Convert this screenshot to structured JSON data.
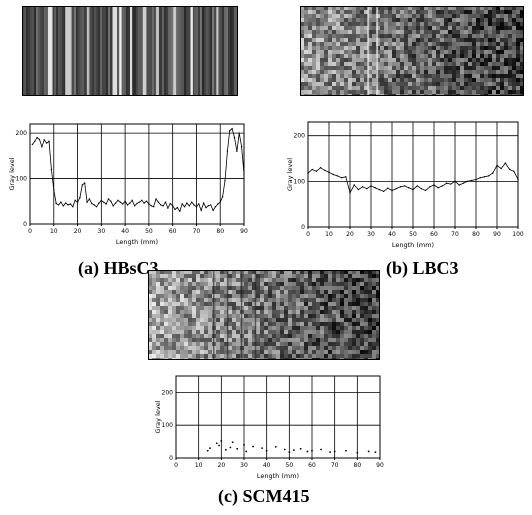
{
  "panels": [
    {
      "id": "a",
      "caption": "(a) HBsC3",
      "image_style": "streaky",
      "chart_data": {
        "type": "line",
        "xlabel": "Length (mm)",
        "ylabel": "Gray level",
        "xlim": [
          0,
          90
        ],
        "ylim": [
          0,
          220
        ],
        "xticks": [
          0,
          10,
          20,
          30,
          40,
          50,
          60,
          70,
          80,
          90
        ],
        "yticks": [
          0,
          100,
          200
        ],
        "grid": true,
        "series": [
          {
            "x": [
              1,
              2,
              3,
              4,
              5,
              6,
              7,
              8,
              9,
              10,
              11,
              12,
              13,
              14,
              15,
              16,
              17,
              18,
              19,
              20,
              21,
              22,
              23,
              24,
              25,
              26,
              27,
              28,
              29,
              30,
              31,
              32,
              33,
              34,
              35,
              36,
              37,
              38,
              39,
              40,
              41,
              42,
              43,
              44,
              45,
              46,
              47,
              48,
              49,
              50,
              51,
              52,
              53,
              54,
              55,
              56,
              57,
              58,
              59,
              60,
              61,
              62,
              63,
              64,
              65,
              66,
              67,
              68,
              69,
              70,
              71,
              72,
              73,
              74,
              75,
              76,
              77,
              78,
              79,
              80,
              81,
              82,
              83,
              84,
              85,
              86,
              87,
              88,
              89,
              90
            ],
            "y": [
              175,
              182,
              190,
              186,
              170,
              185,
              178,
              182,
              120,
              75,
              45,
              42,
              48,
              40,
              46,
              42,
              44,
              38,
              52,
              48,
              58,
              86,
              90,
              48,
              55,
              45,
              42,
              38,
              46,
              52,
              48,
              44,
              55,
              50,
              40,
              46,
              52,
              48,
              44,
              50,
              42,
              46,
              52,
              40,
              45,
              48,
              52,
              46,
              50,
              44,
              40,
              38,
              55,
              48,
              42,
              40,
              48,
              35,
              45,
              40,
              32,
              36,
              28,
              44,
              38,
              46,
              40,
              48,
              42,
              38,
              44,
              30,
              46,
              36,
              40,
              42,
              30,
              38,
              44,
              48,
              60,
              95,
              160,
              205,
              210,
              190,
              160,
              200,
              170,
              110
            ]
          }
        ]
      }
    },
    {
      "id": "b",
      "caption": "(b) LBC3",
      "image_style": "noisy-dark-right",
      "chart_data": {
        "type": "line",
        "xlabel": "Length (mm)",
        "ylabel": "Gray level",
        "xlim": [
          0,
          100
        ],
        "ylim": [
          0,
          230
        ],
        "xticks": [
          0,
          10,
          20,
          30,
          40,
          50,
          60,
          70,
          80,
          90,
          100
        ],
        "yticks": [
          0,
          100,
          200
        ],
        "grid": true,
        "series": [
          {
            "x": [
              0,
              2,
              4,
              6,
              8,
              10,
              12,
              14,
              16,
              18,
              20,
              22,
              24,
              26,
              28,
              30,
              32,
              34,
              36,
              38,
              40,
              42,
              44,
              46,
              48,
              50,
              52,
              54,
              56,
              58,
              60,
              62,
              64,
              66,
              68,
              70,
              72,
              74,
              76,
              78,
              80,
              82,
              84,
              86,
              88,
              90,
              92,
              94,
              96,
              98,
              100
            ],
            "y": [
              118,
              126,
              122,
              130,
              124,
              120,
              115,
              112,
              108,
              110,
              75,
              92,
              82,
              88,
              84,
              90,
              86,
              82,
              78,
              85,
              80,
              84,
              88,
              90,
              86,
              82,
              90,
              84,
              80,
              88,
              92,
              86,
              90,
              96,
              94,
              100,
              92,
              96,
              100,
              102,
              104,
              108,
              110,
              112,
              118,
              135,
              128,
              140,
              126,
              122,
              105
            ]
          }
        ]
      }
    },
    {
      "id": "c",
      "caption": "(c) SCM415",
      "image_style": "noisy-light-left",
      "chart_data": {
        "type": "scatter",
        "xlabel": "Length (mm)",
        "ylabel": "Gray level",
        "xlim": [
          0,
          90
        ],
        "ylim": [
          0,
          250
        ],
        "xticks": [
          0,
          10,
          20,
          30,
          40,
          50,
          60,
          70,
          80,
          90
        ],
        "yticks": [
          0,
          100,
          200
        ],
        "grid": true,
        "series": [
          {
            "x": [
              14,
              15,
              18,
              19,
              20,
              22,
              24,
              25,
              27,
              30,
              31,
              34,
              38,
              40,
              44,
              48,
              50,
              52,
              55,
              58,
              60,
              64,
              68,
              70,
              75,
              80,
              85,
              88
            ],
            "y": [
              22,
              30,
              45,
              38,
              52,
              25,
              32,
              48,
              28,
              40,
              20,
              35,
              30,
              22,
              34,
              26,
              18,
              24,
              28,
              20,
              22,
              26,
              18,
              20,
              22,
              16,
              20,
              18
            ]
          }
        ]
      }
    }
  ]
}
